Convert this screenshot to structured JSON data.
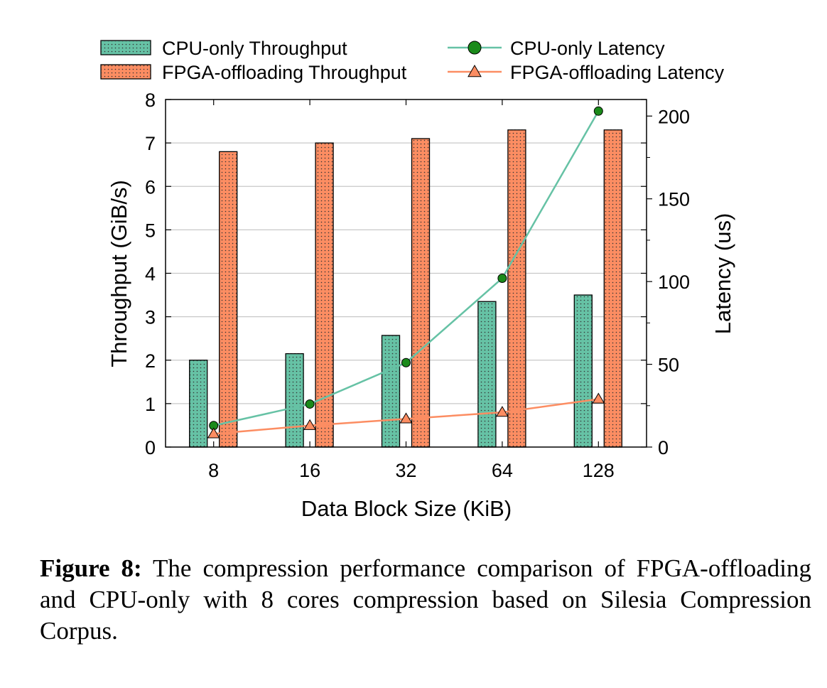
{
  "chart_data": {
    "type": "bar",
    "categories": [
      "8",
      "16",
      "32",
      "64",
      "128"
    ],
    "xlabel": "Data Block Size (KiB)",
    "ylabel": "Throughput (GiB/s)",
    "ylabel_right": "Latency (us)",
    "ylim": [
      0,
      8
    ],
    "ylim_right": [
      0,
      210
    ],
    "yticks": [
      "0",
      "1",
      "2",
      "3",
      "4",
      "5",
      "6",
      "7",
      "8"
    ],
    "yticks_right": [
      "0",
      "50",
      "100",
      "150",
      "200"
    ],
    "grid": true,
    "legend_position": "top",
    "series": [
      {
        "name": "CPU-only Throughput",
        "kind": "bar",
        "axis": "left",
        "color": "#66c2a5",
        "values": [
          2.0,
          2.15,
          2.57,
          3.35,
          3.5
        ]
      },
      {
        "name": "FPGA-offloading Throughput",
        "kind": "bar",
        "axis": "left",
        "color": "#fc8d62",
        "values": [
          6.8,
          7.0,
          7.1,
          7.3,
          7.3
        ]
      },
      {
        "name": "CPU-only Latency",
        "kind": "line",
        "marker": "circle",
        "axis": "right",
        "color": "#66c2a5",
        "marker_color": "#1a8a1a",
        "values": [
          13,
          26,
          51,
          102,
          203
        ]
      },
      {
        "name": "FPGA-offloading Latency",
        "kind": "line",
        "marker": "triangle",
        "axis": "right",
        "color": "#fc8d62",
        "marker_color": "#fc8d62",
        "values": [
          8,
          13,
          17,
          21,
          29
        ]
      }
    ]
  },
  "caption": {
    "label": "Figure 8:",
    "text": "The compression performance comparison of FPGA-offloading and CPU-only with 8 cores compression based on Silesia Compression Corpus."
  }
}
